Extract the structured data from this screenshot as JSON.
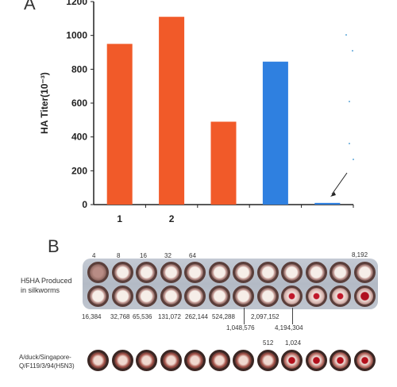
{
  "panel_a": {
    "label": "A"
  },
  "panel_b": {
    "label": "B"
  },
  "chart_data": {
    "type": "bar",
    "title": "",
    "xlabel": "",
    "ylabel": "HA Titer(10⁻³)",
    "ylim": [
      0,
      1200
    ],
    "yticks": [
      0,
      200,
      400,
      600,
      800,
      1000,
      1200
    ],
    "categories": [
      "1",
      "2",
      "",
      "",
      ""
    ],
    "values": [
      950,
      1110,
      490,
      845,
      10
    ],
    "bar_colors": [
      "#f15a29",
      "#f15a29",
      "#f15a29",
      "#2f80e0",
      "#2f80e0"
    ],
    "grid": false,
    "legend": "none"
  },
  "plate_rows": [
    {
      "label_lines": [
        "H5HA Produced",
        "in silkworms"
      ],
      "top_labels": [
        "4",
        "8",
        "16",
        "32",
        "64",
        "8,192"
      ],
      "bottom_labels": [
        "16,384",
        "32,768",
        "65,536",
        "131,072",
        "262,144",
        "524,288",
        "1,048,576",
        "2,097,152",
        "4,194,304"
      ]
    },
    {
      "label_lines": [
        "A/duck/Singapore-",
        "Q/F119/3/94(H5N3)"
      ],
      "top_labels": [
        "512",
        "1,024"
      ]
    }
  ]
}
